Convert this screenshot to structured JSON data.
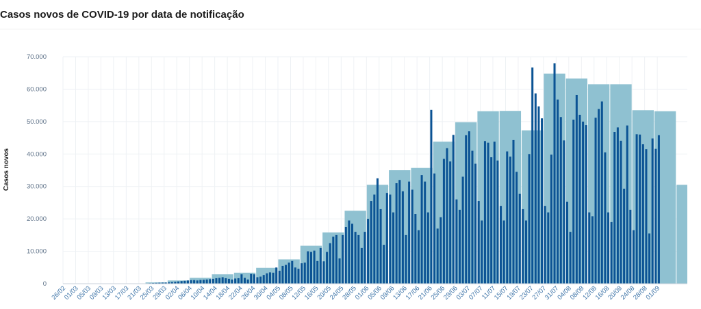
{
  "chart_data": {
    "type": "bar",
    "title": "Casos novos de COVID-19 por data de notificação",
    "ylabel": "Casos novos",
    "xlabel": "",
    "ylim": [
      0,
      70000
    ],
    "yticks": [
      0,
      10000,
      20000,
      30000,
      40000,
      50000,
      60000,
      70000
    ],
    "ytick_labels": [
      "0",
      "10.000",
      "20.000",
      "30.000",
      "40.000",
      "50.000",
      "60.000",
      "70.000"
    ],
    "grid": true,
    "legend": "none",
    "colors": {
      "daily": "#0b5394",
      "weekly": "#8fc1d1",
      "grid": "#eef1f4"
    },
    "x_tick_labels": [
      "26/02",
      "01/03",
      "05/03",
      "09/03",
      "13/03",
      "17/03",
      "21/03",
      "25/03",
      "29/03",
      "02/04",
      "06/04",
      "10/04",
      "14/04",
      "18/04",
      "22/04",
      "26/04",
      "30/04",
      "04/05",
      "08/05",
      "12/05",
      "16/05",
      "20/05",
      "24/05",
      "28/05",
      "01/06",
      "05/06",
      "09/06",
      "13/06",
      "17/06",
      "21/06",
      "25/06",
      "29/06",
      "03/07",
      "07/07",
      "11/07",
      "15/07",
      "19/07",
      "23/07",
      "27/07",
      "31/07",
      "04/08",
      "08/08",
      "12/08",
      "16/08",
      "20/08",
      "24/08",
      "28/08",
      "01/09"
    ],
    "series": [
      {
        "kind": "daily",
        "start_label": "26/02",
        "values": [
          1,
          0,
          0,
          0,
          0,
          0,
          0,
          0,
          0,
          0,
          0,
          0,
          0,
          0,
          2,
          0,
          5,
          0,
          0,
          0,
          10,
          20,
          30,
          40,
          50,
          70,
          100,
          150,
          200,
          250,
          300,
          350,
          350,
          400,
          500,
          600,
          700,
          800,
          900,
          1000,
          1100,
          1100,
          1000,
          1150,
          1200,
          1300,
          1400,
          1500,
          1700,
          1800,
          2000,
          1700,
          1500,
          1300,
          1600,
          1700,
          2900,
          1800,
          1300,
          3000,
          2900,
          2000,
          2200,
          2700,
          3200,
          3500,
          3400,
          5000,
          4000,
          5500,
          5800,
          6500,
          7000,
          5000,
          4600,
          6300,
          6500,
          10000,
          9800,
          10200,
          7000,
          11000,
          6900,
          9800,
          12500,
          14500,
          15000,
          7800,
          15000,
          17500,
          19500,
          18500,
          16000,
          15000,
          11000,
          16000,
          20000,
          25500,
          27500,
          32500,
          23000,
          12000,
          28000,
          27500,
          22000,
          31000,
          32000,
          28500,
          15000,
          31500,
          29000,
          21500,
          16500,
          33500,
          31500,
          22000,
          53600,
          34000,
          17000,
          20500,
          38500,
          41800,
          37700,
          45900,
          26000,
          22800,
          33000,
          45800,
          47000,
          41000,
          37000,
          25500,
          19500,
          44000,
          43500,
          39000,
          43800,
          38000,
          24000,
          19500,
          40800,
          39200,
          44300,
          34500,
          27700,
          23000,
          19500,
          40000,
          66700,
          58700,
          54700,
          51000,
          24000,
          22000,
          39800,
          68000,
          56800,
          51400,
          44200,
          25300,
          16000,
          50600,
          58200,
          52100,
          50000,
          48900,
          22000,
          20800,
          51200,
          53900,
          56200,
          40500,
          22000,
          19000,
          46800,
          48200,
          44100,
          29300,
          48800,
          22800,
          16500,
          46100,
          46000,
          43000,
          41500,
          15500,
          44800,
          41600,
          45800
        ]
      },
      {
        "kind": "weekly",
        "start_label": "23/02",
        "values": [
          0,
          0,
          0,
          100,
          400,
          1000,
          1800,
          2900,
          3400,
          4900,
          7500,
          11700,
          15800,
          22500,
          30500,
          35000,
          35700,
          43800,
          49800,
          53200,
          53300,
          47300,
          64800,
          63300,
          61500,
          61500,
          53500,
          53200,
          30500
        ]
      }
    ]
  }
}
